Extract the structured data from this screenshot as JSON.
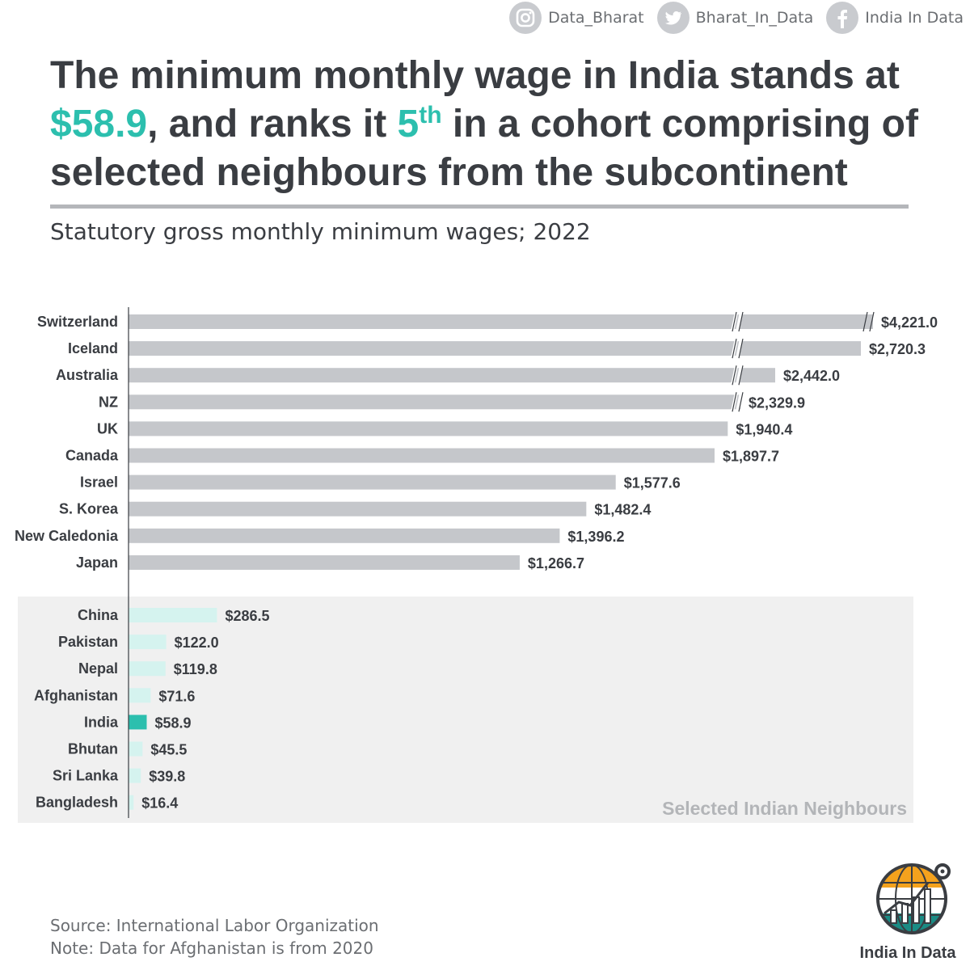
{
  "social": [
    {
      "icon": "instagram-icon",
      "handle": "Data_Bharat"
    },
    {
      "icon": "twitter-icon",
      "handle": "Bharat_In_Data"
    },
    {
      "icon": "facebook-icon",
      "handle": "India In Data"
    }
  ],
  "headline": {
    "part1": "The minimum monthly wage in India stands at ",
    "wage": "$58.9",
    "part2": ", and ranks it ",
    "rank": "5",
    "rank_suffix": "th",
    "part3": " in a cohort comprising of selected neighbours from the subcontinent"
  },
  "colors": {
    "accent": "#2cbfae",
    "bar_main": "#c5c7cb",
    "bar_neighbour": "#d5f3ef",
    "bar_highlight": "#2cbfae",
    "panel": "#f0f0f0",
    "text": "#3a3d42"
  },
  "chart_data": {
    "type": "bar",
    "orientation": "horizontal",
    "title": "",
    "subtitle": "Statutory gross monthly minimum wages; 2022",
    "xlabel": "",
    "ylabel": "",
    "axis_break": true,
    "groups": [
      {
        "label": "",
        "categories": [
          "Switzerland",
          "Iceland",
          "Australia",
          "NZ",
          "UK",
          "Canada",
          "Israel",
          "S. Korea",
          "New Caledonia",
          "Japan"
        ],
        "values": [
          4221.0,
          2720.3,
          2442.0,
          2329.9,
          1940.4,
          1897.7,
          1577.6,
          1482.4,
          1396.2,
          1266.7
        ],
        "labels": [
          "$4,221.0",
          "$2,720.3",
          "$2,442.0",
          "$2,329.9",
          "$1,940.4",
          "$1,897.7",
          "$1,577.6",
          "$1,482.4",
          "$1,396.2",
          "$1,266.7"
        ],
        "broken": [
          true,
          true,
          true,
          true,
          false,
          false,
          false,
          false,
          false,
          false
        ]
      },
      {
        "label": "Selected Indian Neighbours",
        "categories": [
          "China",
          "Pakistan",
          "Nepal",
          "Afghanistan",
          "India",
          "Bhutan",
          "Sri Lanka",
          "Bangladesh"
        ],
        "values": [
          286.5,
          122.0,
          119.8,
          71.6,
          58.9,
          45.5,
          39.8,
          16.4
        ],
        "labels": [
          "$286.5",
          "$122.0",
          "$119.8",
          "$71.6",
          "$58.9",
          "$45.5",
          "$39.8",
          "$16.4"
        ],
        "highlight": "India"
      }
    ]
  },
  "footer": {
    "source": "Source: International Labor Organization",
    "note": "Note: Data for Afghanistan is from 2020"
  },
  "logo": {
    "text": "India In Data"
  }
}
